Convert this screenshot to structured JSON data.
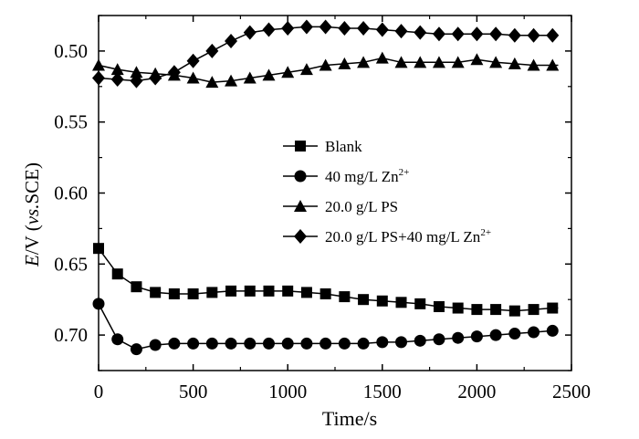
{
  "chart_data": {
    "type": "line",
    "title": "",
    "xlabel": "Time/s",
    "ylabel_italic": "E",
    "ylabel_mid": "/V (",
    "ylabel_vs": "vs.",
    "ylabel_end": "SCE)",
    "xlim": [
      0,
      2500
    ],
    "ylim": [
      0.475,
      0.725
    ],
    "y_inverted": true,
    "x_ticks": [
      0,
      500,
      1000,
      1500,
      2000,
      2500
    ],
    "x_tick_labels": [
      "0",
      "500",
      "1000",
      "1500",
      "2000",
      "2500"
    ],
    "y_ticks": [
      0.5,
      0.55,
      0.6,
      0.65,
      0.7
    ],
    "y_tick_labels": [
      "0.50",
      "0.55",
      "0.60",
      "0.65",
      "0.70"
    ],
    "legend_position": "center-right",
    "series": [
      {
        "name": "Blank",
        "name_sup": "",
        "marker": "square",
        "x": [
          0,
          100,
          200,
          300,
          400,
          500,
          600,
          700,
          800,
          900,
          1000,
          1100,
          1200,
          1300,
          1400,
          1500,
          1600,
          1700,
          1800,
          1900,
          2000,
          2100,
          2200,
          2300,
          2400
        ],
        "y": [
          0.639,
          0.657,
          0.666,
          0.67,
          0.671,
          0.671,
          0.67,
          0.669,
          0.669,
          0.669,
          0.669,
          0.67,
          0.671,
          0.673,
          0.675,
          0.676,
          0.677,
          0.678,
          0.68,
          0.681,
          0.682,
          0.682,
          0.683,
          0.682,
          0.681
        ]
      },
      {
        "name": "40 mg/L Zn",
        "name_sup": "2+",
        "marker": "circle",
        "x": [
          0,
          100,
          200,
          300,
          400,
          500,
          600,
          700,
          800,
          900,
          1000,
          1100,
          1200,
          1300,
          1400,
          1500,
          1600,
          1700,
          1800,
          1900,
          2000,
          2100,
          2200,
          2300,
          2400
        ],
        "y": [
          0.678,
          0.703,
          0.71,
          0.707,
          0.706,
          0.706,
          0.706,
          0.706,
          0.706,
          0.706,
          0.706,
          0.706,
          0.706,
          0.706,
          0.706,
          0.705,
          0.705,
          0.704,
          0.703,
          0.702,
          0.701,
          0.7,
          0.699,
          0.698,
          0.697
        ]
      },
      {
        "name": "20.0 g/L PS",
        "name_sup": "",
        "marker": "triangle",
        "x": [
          0,
          100,
          200,
          300,
          400,
          500,
          600,
          700,
          800,
          900,
          1000,
          1100,
          1200,
          1300,
          1400,
          1500,
          1600,
          1700,
          1800,
          1900,
          2000,
          2100,
          2200,
          2300,
          2400
        ],
        "y": [
          0.51,
          0.513,
          0.515,
          0.516,
          0.517,
          0.519,
          0.522,
          0.521,
          0.519,
          0.517,
          0.515,
          0.513,
          0.51,
          0.509,
          0.508,
          0.505,
          0.508,
          0.508,
          0.508,
          0.508,
          0.506,
          0.508,
          0.509,
          0.51,
          0.51
        ]
      },
      {
        "name": "20.0 g/L PS+40 mg/L Zn",
        "name_sup": "2+",
        "marker": "diamond",
        "x": [
          0,
          100,
          200,
          300,
          400,
          500,
          600,
          700,
          800,
          900,
          1000,
          1100,
          1200,
          1300,
          1400,
          1500,
          1600,
          1700,
          1800,
          1900,
          2000,
          2100,
          2200,
          2300,
          2400
        ],
        "y": [
          0.519,
          0.52,
          0.521,
          0.519,
          0.515,
          0.507,
          0.5,
          0.493,
          0.487,
          0.485,
          0.484,
          0.483,
          0.483,
          0.484,
          0.484,
          0.485,
          0.486,
          0.487,
          0.488,
          0.488,
          0.488,
          0.488,
          0.489,
          0.489,
          0.489
        ]
      }
    ]
  }
}
